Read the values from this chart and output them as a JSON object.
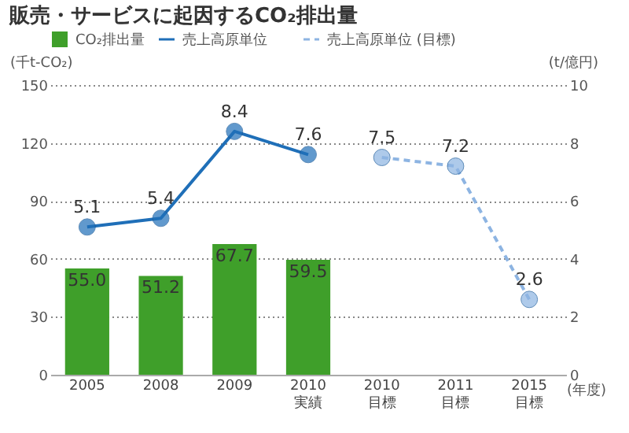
{
  "chart_data": {
    "type": "bar",
    "title": "販売・サービスに起因するCO₂排出量",
    "categories": [
      "2005",
      "2008",
      "2009",
      "2010\n実績",
      "2010\n目標",
      "2011\n目標",
      "2015\n目標"
    ],
    "xlabel": "(年度)",
    "ylabel": "(千t-CO₂)",
    "y2label": "(t/億円)",
    "series": [
      {
        "name": "CO₂排出量",
        "type": "bar",
        "color": "#3f9f2a",
        "values": [
          55.0,
          51.2,
          67.7,
          59.5,
          null,
          null,
          null
        ],
        "value_labels": [
          "55.0",
          "51.2",
          "67.7",
          "59.5",
          null,
          null,
          null
        ]
      },
      {
        "name": "売上高原単位",
        "type": "line",
        "axis": "y2",
        "color": "#1f6fb8",
        "line_style": "solid",
        "values": [
          5.1,
          5.4,
          8.4,
          7.6,
          null,
          null,
          null
        ]
      },
      {
        "name": "売上高原単位 (目標)",
        "type": "line",
        "axis": "y2",
        "color": "#8db4e2",
        "line_style": "dashed",
        "values": [
          null,
          null,
          null,
          null,
          7.5,
          7.2,
          2.6
        ]
      }
    ],
    "ylim": [
      0,
      150
    ],
    "yticks": [
      0,
      30,
      60,
      90,
      120,
      150
    ],
    "y2lim": [
      0,
      10
    ],
    "y2ticks": [
      0,
      2,
      4,
      6,
      8,
      10
    ],
    "grid": "y",
    "legend": "top",
    "marker": "circle",
    "data_labels": true
  }
}
